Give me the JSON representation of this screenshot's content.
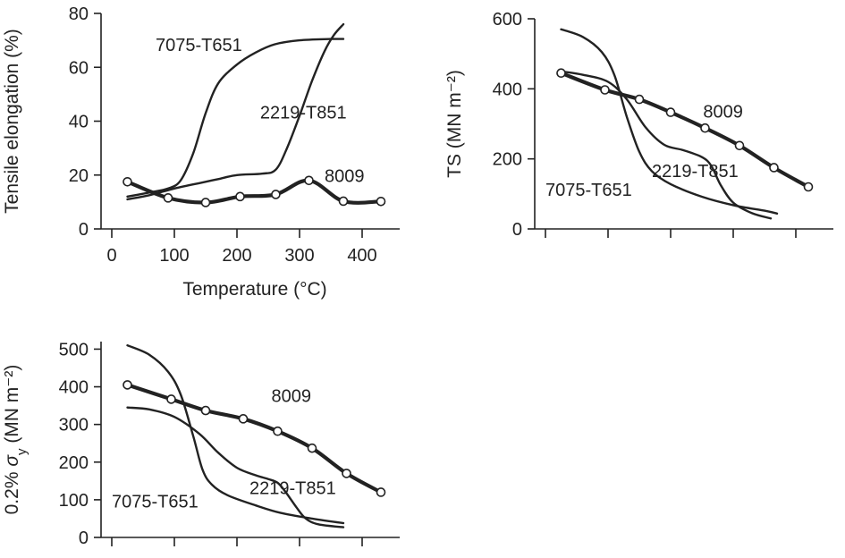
{
  "chart_data": [
    {
      "id": "elongation",
      "type": "line",
      "xlabel": "Temperature (°C)",
      "ylabel": "Tensile elongation (%)",
      "xlim": [
        -20,
        460
      ],
      "ylim": [
        0,
        80
      ],
      "xticks": [
        0,
        100,
        200,
        300,
        400
      ],
      "yticks": [
        0,
        20,
        40,
        60,
        80
      ],
      "show_x_tick_labels": true,
      "series": [
        {
          "name": "7075-T651",
          "style": "thin",
          "label_at": [
            70,
            66
          ],
          "points": [
            [
              25,
              12
            ],
            [
              60,
              13.5
            ],
            [
              90,
              15
            ],
            [
              110,
              18
            ],
            [
              130,
              28
            ],
            [
              150,
              43
            ],
            [
              170,
              54
            ],
            [
              200,
              61
            ],
            [
              230,
              65.5
            ],
            [
              260,
              68.5
            ],
            [
              300,
              70
            ],
            [
              350,
              70.5
            ],
            [
              370,
              70.5
            ]
          ]
        },
        {
          "name": "2219-T851",
          "style": "thin",
          "label_at": [
            237,
            41
          ],
          "points": [
            [
              25,
              11
            ],
            [
              60,
              12.5
            ],
            [
              100,
              15
            ],
            [
              140,
              17
            ],
            [
              170,
              18.5
            ],
            [
              200,
              20
            ],
            [
              240,
              20.5
            ],
            [
              262,
              22
            ],
            [
              280,
              30
            ],
            [
              300,
              42
            ],
            [
              320,
              55
            ],
            [
              340,
              66
            ],
            [
              355,
              72
            ],
            [
              370,
              76
            ]
          ]
        },
        {
          "name": "8009",
          "style": "thick",
          "markers": true,
          "label_at": [
            340,
            17.5
          ],
          "points": [
            [
              25,
              17.5
            ],
            [
              90,
              11.5
            ],
            [
              150,
              9.8
            ],
            [
              205,
              12
            ],
            [
              262,
              12.8
            ],
            [
              315,
              18
            ],
            [
              370,
              10.3
            ],
            [
              430,
              10.2
            ]
          ],
          "marker_points": [
            [
              25,
              17.5
            ],
            [
              90,
              11.5
            ],
            [
              150,
              9.8
            ],
            [
              205,
              12
            ],
            [
              262,
              12.8
            ],
            [
              315,
              18
            ],
            [
              370,
              10.3
            ],
            [
              430,
              10.2
            ]
          ]
        }
      ]
    },
    {
      "id": "ts",
      "type": "line",
      "xlabel": "",
      "ylabel": "TS (MN m⁻²)",
      "xlim": [
        -20,
        460
      ],
      "ylim": [
        0,
        600
      ],
      "xticks": [
        0,
        100,
        200,
        300,
        400
      ],
      "yticks": [
        0,
        200,
        400,
        600
      ],
      "show_x_tick_labels": false,
      "series": [
        {
          "name": "7075-T651",
          "style": "thin",
          "label_at": [
            0,
            95
          ],
          "points": [
            [
              25,
              570
            ],
            [
              60,
              548
            ],
            [
              90,
              505
            ],
            [
              110,
              440
            ],
            [
              130,
              320
            ],
            [
              150,
              220
            ],
            [
              170,
              165
            ],
            [
              200,
              128
            ],
            [
              250,
              92
            ],
            [
              300,
              68
            ],
            [
              350,
              52
            ],
            [
              370,
              44
            ]
          ]
        },
        {
          "name": "2219-T851",
          "style": "thin",
          "label_at": [
            170,
            148
          ],
          "points": [
            [
              25,
              450
            ],
            [
              60,
              440
            ],
            [
              100,
              420
            ],
            [
              130,
              370
            ],
            [
              160,
              290
            ],
            [
              190,
              240
            ],
            [
              220,
              225
            ],
            [
              250,
              205
            ],
            [
              265,
              180
            ],
            [
              280,
              125
            ],
            [
              300,
              75
            ],
            [
              330,
              45
            ],
            [
              360,
              30
            ]
          ]
        },
        {
          "name": "8009",
          "style": "thick",
          "markers": true,
          "label_at": [
            252,
            318
          ],
          "points": [
            [
              25,
              445
            ],
            [
              95,
              397
            ],
            [
              150,
              370
            ],
            [
              200,
              333
            ],
            [
              255,
              288
            ],
            [
              310,
              238
            ],
            [
              365,
              175
            ],
            [
              420,
              120
            ]
          ],
          "marker_points": [
            [
              25,
              445
            ],
            [
              95,
              397
            ],
            [
              150,
              370
            ],
            [
              200,
              333
            ],
            [
              255,
              288
            ],
            [
              310,
              238
            ],
            [
              365,
              175
            ],
            [
              420,
              120
            ]
          ]
        }
      ]
    },
    {
      "id": "ys",
      "type": "line",
      "xlabel": "",
      "ylabel": "0.2% σ_y (MN m⁻²)",
      "ylabel_parts": {
        "prefix": "0.2% ",
        "sigma": "σ",
        "subscript": "y",
        "units": " (MN m⁻²)"
      },
      "xlim": [
        -20,
        460
      ],
      "ylim": [
        0,
        520
      ],
      "xticks": [
        0,
        100,
        200,
        300,
        400
      ],
      "yticks": [
        0,
        100,
        200,
        300,
        400,
        500
      ],
      "show_x_tick_labels": false,
      "series": [
        {
          "name": "7075-T651",
          "style": "thin",
          "label_at": [
            0,
            80
          ],
          "points": [
            [
              25,
              510
            ],
            [
              60,
              485
            ],
            [
              90,
              440
            ],
            [
              110,
              380
            ],
            [
              130,
              270
            ],
            [
              145,
              180
            ],
            [
              160,
              140
            ],
            [
              185,
              112
            ],
            [
              230,
              85
            ],
            [
              270,
              65
            ],
            [
              320,
              50
            ],
            [
              370,
              38
            ]
          ]
        },
        {
          "name": "2219-T851",
          "style": "thin",
          "label_at": [
            220,
            115
          ],
          "points": [
            [
              25,
              345
            ],
            [
              60,
              340
            ],
            [
              100,
              320
            ],
            [
              140,
              275
            ],
            [
              170,
              225
            ],
            [
              200,
              185
            ],
            [
              230,
              165
            ],
            [
              250,
              155
            ],
            [
              265,
              145
            ],
            [
              278,
              120
            ],
            [
              295,
              80
            ],
            [
              310,
              50
            ],
            [
              330,
              35
            ],
            [
              370,
              27
            ]
          ]
        },
        {
          "name": "8009",
          "style": "thick",
          "markers": true,
          "label_at": [
            255,
            360
          ],
          "points": [
            [
              25,
              405
            ],
            [
              95,
              367
            ],
            [
              150,
              337
            ],
            [
              210,
              315
            ],
            [
              265,
              282
            ],
            [
              320,
              237
            ],
            [
              375,
              170
            ],
            [
              430,
              120
            ]
          ],
          "marker_points": [
            [
              25,
              405
            ],
            [
              95,
              367
            ],
            [
              150,
              337
            ],
            [
              210,
              315
            ],
            [
              265,
              282
            ],
            [
              320,
              237
            ],
            [
              375,
              170
            ],
            [
              430,
              120
            ]
          ]
        }
      ]
    }
  ]
}
